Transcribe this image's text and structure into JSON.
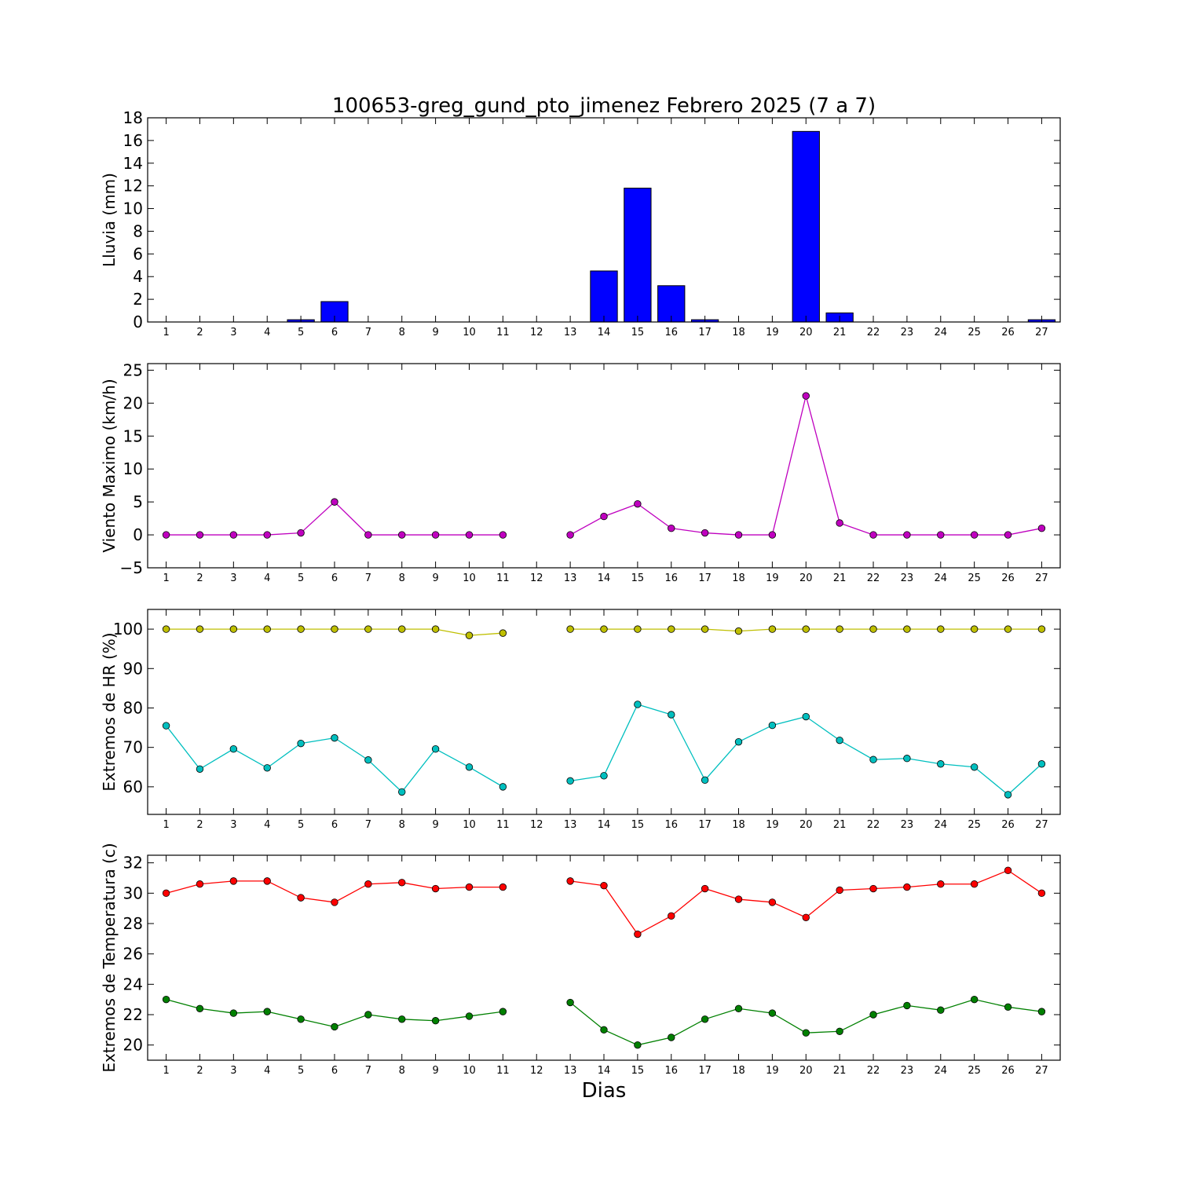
{
  "chart_data": [
    {
      "type": "bar",
      "title": "100653-greg_gund_pto_jimenez Febrero 2025  (7 a 7)",
      "ylabel": "Lluvia (mm)",
      "ylim": [
        0,
        18
      ],
      "yticks": [
        0,
        2,
        4,
        6,
        8,
        10,
        12,
        14,
        16,
        18
      ],
      "categories": [
        "1",
        "2",
        "3",
        "4",
        "5",
        "6",
        "7",
        "8",
        "9",
        "10",
        "11",
        "12",
        "13",
        "14",
        "15",
        "16",
        "17",
        "18",
        "19",
        "20",
        "21",
        "22",
        "23",
        "24",
        "25",
        "26",
        "27"
      ],
      "series": [
        {
          "color": "#0000ff",
          "values": [
            0,
            0,
            0,
            0,
            0.2,
            1.8,
            0,
            0,
            0,
            0,
            0,
            0,
            0,
            4.5,
            11.8,
            3.2,
            0.2,
            0,
            0,
            16.8,
            0.8,
            0,
            0,
            0,
            0,
            0,
            0.2
          ]
        }
      ]
    },
    {
      "type": "line",
      "ylabel": "Viento Maximo (km/h)",
      "ylim": [
        -5,
        26
      ],
      "yticks": [
        -5,
        0,
        5,
        10,
        15,
        20,
        25
      ],
      "categories": [
        "1",
        "2",
        "3",
        "4",
        "5",
        "6",
        "7",
        "8",
        "9",
        "10",
        "11",
        "12",
        "13",
        "14",
        "15",
        "16",
        "17",
        "18",
        "19",
        "20",
        "21",
        "22",
        "23",
        "24",
        "25",
        "26",
        "27"
      ],
      "series": [
        {
          "color": "#bf00bf",
          "values": [
            0,
            0,
            0,
            0,
            0.3,
            5.0,
            0,
            0,
            0,
            0,
            0,
            null,
            0,
            2.8,
            4.7,
            1.0,
            0.3,
            0,
            0,
            21.1,
            1.8,
            0,
            0,
            0,
            0,
            0,
            1.0
          ]
        }
      ]
    },
    {
      "type": "line",
      "ylabel": "Extremos de HR (%)",
      "ylim": [
        53,
        105
      ],
      "yticks": [
        60,
        70,
        80,
        90,
        100
      ],
      "categories": [
        "1",
        "2",
        "3",
        "4",
        "5",
        "6",
        "7",
        "8",
        "9",
        "10",
        "11",
        "12",
        "13",
        "14",
        "15",
        "16",
        "17",
        "18",
        "19",
        "20",
        "21",
        "22",
        "23",
        "24",
        "25",
        "26",
        "27"
      ],
      "series": [
        {
          "color": "#bfbf00",
          "values": [
            100,
            100,
            100,
            100,
            100,
            100,
            100,
            100,
            100,
            98.4,
            99.0,
            null,
            100,
            100,
            100,
            100,
            100,
            99.5,
            100,
            100,
            100,
            100,
            100,
            100,
            100,
            100,
            100
          ]
        },
        {
          "color": "#00bfbf",
          "values": [
            75.5,
            64.5,
            69.6,
            64.8,
            71.0,
            72.4,
            66.8,
            58.7,
            69.6,
            65.0,
            60.0,
            null,
            61.5,
            62.8,
            80.9,
            78.3,
            61.7,
            71.4,
            75.6,
            77.8,
            71.8,
            66.9,
            67.2,
            65.8,
            65.0,
            58.0,
            65.8
          ]
        }
      ]
    },
    {
      "type": "line",
      "ylabel": "Extremos de Temperatura (c)",
      "xlabel": "Dias",
      "ylim": [
        19,
        32.5
      ],
      "yticks": [
        20,
        22,
        24,
        26,
        28,
        30,
        32
      ],
      "categories": [
        "1",
        "2",
        "3",
        "4",
        "5",
        "6",
        "7",
        "8",
        "9",
        "10",
        "11",
        "12",
        "13",
        "14",
        "15",
        "16",
        "17",
        "18",
        "19",
        "20",
        "21",
        "22",
        "23",
        "24",
        "25",
        "26",
        "27"
      ],
      "series": [
        {
          "color": "#ff0000",
          "values": [
            30.0,
            30.6,
            30.8,
            30.8,
            29.7,
            29.4,
            30.6,
            30.7,
            30.3,
            30.4,
            30.4,
            null,
            30.8,
            30.5,
            27.3,
            28.5,
            30.3,
            29.6,
            29.4,
            28.4,
            30.2,
            30.3,
            30.4,
            30.6,
            30.6,
            31.5,
            30.0
          ]
        },
        {
          "color": "#008000",
          "values": [
            23.0,
            22.4,
            22.1,
            22.2,
            21.7,
            21.2,
            22.0,
            21.7,
            21.6,
            21.9,
            22.2,
            null,
            22.8,
            21.0,
            20.0,
            20.5,
            21.7,
            22.4,
            22.1,
            20.8,
            20.9,
            22.0,
            22.6,
            22.3,
            23.0,
            22.5,
            22.2
          ]
        }
      ]
    }
  ]
}
